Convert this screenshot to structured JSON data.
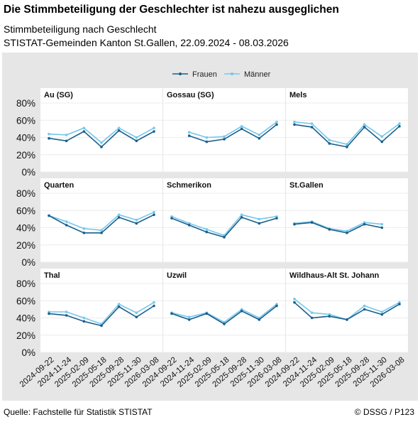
{
  "title": "Die Stimmbeteiligung der Geschlechter ist nahezu ausgeglichen",
  "subtitle": "Stimmbeteiligung nach Geschlecht",
  "subtitle2": "STISTAT-Gemeinden Kanton St.Gallen, 22.09.2024 - 08.03.2026",
  "source": "Quelle: Fachstelle für Statistik STISTAT",
  "copyright": "© DSSG / P123",
  "colors": {
    "frauen": "#1b5e8a",
    "maenner": "#74c8ec",
    "panel_bg": "#e6e6e6"
  },
  "chart_data": {
    "type": "line",
    "x": [
      "2024-09-22",
      "2024-11-24",
      "2025-02-09",
      "2025-05-18",
      "2025-09-28",
      "2025-11-30",
      "2026-03-08"
    ],
    "y_ticks": [
      "0%",
      "20%",
      "40%",
      "60%",
      "80%"
    ],
    "ylim": [
      0,
      80
    ],
    "legend": {
      "position": "top",
      "entries": [
        "Frauen",
        "Männer"
      ]
    },
    "grid": true,
    "facets": [
      {
        "name": "Au (SG)",
        "series": [
          {
            "name": "Frauen",
            "values": [
              39,
              36,
              47,
              29,
              48,
              36,
              47
            ]
          },
          {
            "name": "Männer",
            "values": [
              44,
              43,
              51,
              34,
              51,
              40,
              51
            ]
          }
        ]
      },
      {
        "name": "Gossau (SG)",
        "series": [
          {
            "name": "Frauen",
            "values": [
              null,
              42,
              35,
              38,
              50,
              39,
              55
            ]
          },
          {
            "name": "Männer",
            "values": [
              null,
              46,
              40,
              41,
              53,
              43,
              58
            ]
          }
        ]
      },
      {
        "name": "Mels",
        "series": [
          {
            "name": "Frauen",
            "values": [
              55,
              52,
              33,
              29,
              52,
              35,
              53
            ]
          },
          {
            "name": "Männer",
            "values": [
              58,
              56,
              37,
              32,
              55,
              41,
              56
            ]
          }
        ]
      },
      {
        "name": "Quarten",
        "series": [
          {
            "name": "Frauen",
            "values": [
              54,
              43,
              34,
              34,
              52,
              45,
              55
            ]
          },
          {
            "name": "Männer",
            "values": [
              54,
              47,
              39,
              37,
              55,
              49,
              58
            ]
          }
        ]
      },
      {
        "name": "Schmerikon",
        "series": [
          {
            "name": "Frauen",
            "values": [
              51,
              43,
              35,
              29,
              52,
              45,
              51
            ]
          },
          {
            "name": "Männer",
            "values": [
              53,
              45,
              38,
              31,
              55,
              50,
              53
            ]
          }
        ]
      },
      {
        "name": "St.Gallen",
        "series": [
          {
            "name": "Frauen",
            "values": [
              44,
              46,
              38,
              34,
              44,
              40,
              null
            ]
          },
          {
            "name": "Männer",
            "values": [
              45,
              47,
              39,
              36,
              46,
              44,
              null
            ]
          }
        ]
      },
      {
        "name": "Thal",
        "series": [
          {
            "name": "Frauen",
            "values": [
              45,
              43,
              36,
              31,
              53,
              41,
              54
            ]
          },
          {
            "name": "Männer",
            "values": [
              47,
              47,
              40,
              33,
              56,
              46,
              58
            ]
          }
        ]
      },
      {
        "name": "Uzwil",
        "series": [
          {
            "name": "Frauen",
            "values": [
              45,
              38,
              45,
              33,
              48,
              38,
              54
            ]
          },
          {
            "name": "Männer",
            "values": [
              46,
              41,
              46,
              35,
              50,
              40,
              56
            ]
          }
        ]
      },
      {
        "name": "Wildhaus-Alt St. Johann",
        "series": [
          {
            "name": "Frauen",
            "values": [
              58,
              40,
              42,
              38,
              50,
              44,
              56
            ]
          },
          {
            "name": "Männer",
            "values": [
              62,
              46,
              44,
              38,
              54,
              47,
              58
            ]
          }
        ]
      }
    ]
  }
}
